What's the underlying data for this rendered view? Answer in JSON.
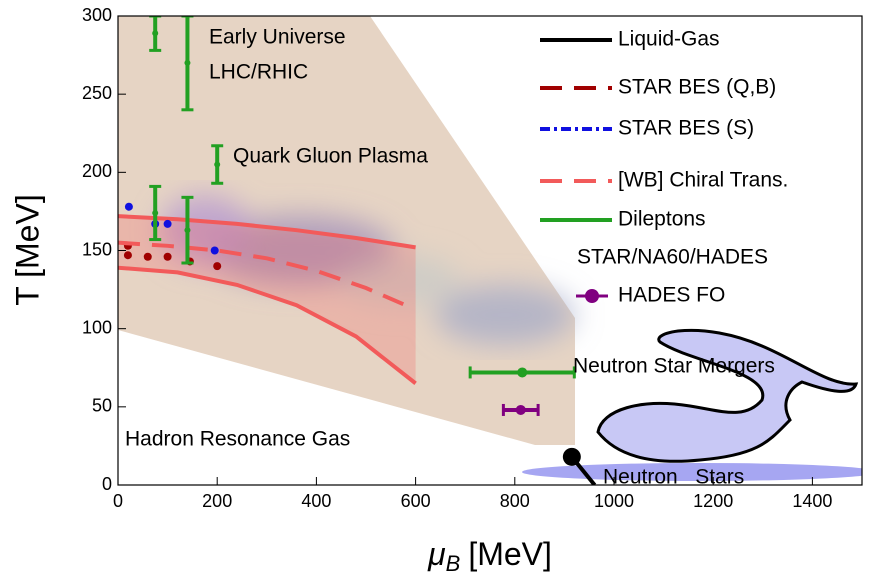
{
  "chart_data": {
    "type": "scatter",
    "xlabel": {
      "symbol": "μ",
      "subscript": "B",
      "unit": "[MeV]"
    },
    "ylabel": "T [MeV]",
    "xlim": [
      0,
      1500
    ],
    "ylim": [
      0,
      300
    ],
    "xticks": [
      0,
      200,
      400,
      600,
      800,
      1000,
      1200,
      1400
    ],
    "yticks": [
      0,
      50,
      100,
      150,
      200,
      250,
      300
    ],
    "annotations": [
      "Early Universe",
      "LHC/RHIC",
      "Quark Gluon Plasma",
      "Neutron Star Mergers",
      "Hadron Resonance Gas",
      "Neutron   Stars"
    ],
    "band": {
      "color": "#f25a5a",
      "x": [
        0,
        120,
        240,
        360,
        480,
        600
      ],
      "upper": [
        172,
        170,
        167,
        163,
        158,
        152
      ],
      "lower": [
        139,
        136,
        128,
        115,
        95,
        65
      ]
    },
    "series": [
      {
        "name": "Liquid-Gas",
        "color": "#000000",
        "style": "line",
        "x": [
          915,
          961
        ],
        "values": [
          18,
          0
        ]
      },
      {
        "name": "STAR BES (Q,B)",
        "color": "#a00000",
        "style": "points",
        "x": [
          20,
          20,
          60,
          100,
          145,
          200
        ],
        "values": [
          153,
          147,
          146,
          146,
          143,
          140
        ]
      },
      {
        "name": "STAR BES (S)",
        "color": "#1010e0",
        "style": "points",
        "x": [
          22,
          75,
          100,
          195
        ],
        "values": [
          178,
          167,
          167,
          150
        ]
      },
      {
        "name": "[WB] Chiral Trans.",
        "color": "#f25a5a",
        "style": "dashed",
        "x": [
          0,
          100,
          200,
          300,
          400,
          500,
          580
        ],
        "values": [
          155,
          153,
          150,
          145,
          137,
          126,
          115
        ]
      },
      {
        "name": "Dileptons",
        "legend_sublabel": "STAR/NA60/HADES",
        "color": "#22a022",
        "style": "errorbar",
        "x": [
          75,
          140,
          200,
          75,
          140,
          815
        ],
        "values": [
          289,
          270,
          205,
          174,
          163,
          72
        ],
        "xerr": [
          0,
          0,
          0,
          0,
          0,
          105
        ],
        "yerr": [
          11,
          30,
          12,
          17,
          21,
          0
        ]
      },
      {
        "name": "HADES FO",
        "color": "#800080",
        "style": "errorbar",
        "x": [
          812
        ],
        "values": [
          48
        ],
        "xerr": [
          35
        ],
        "yerr": [
          0
        ]
      }
    ]
  }
}
